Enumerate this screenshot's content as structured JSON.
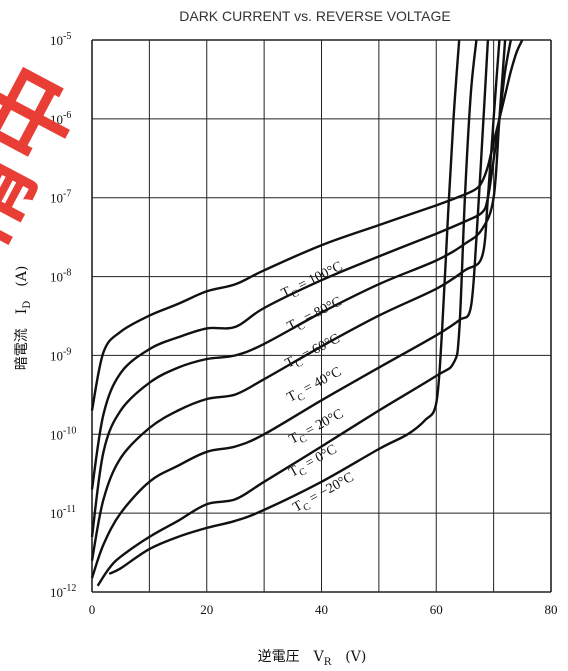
{
  "chart_data": {
    "type": "line",
    "title": "DARK CURRENT vs. REVERSE VOLTAGE",
    "xlabel": "逆電圧　V_R　(V)",
    "ylabel": "暗電流　I_D　(A)",
    "xlim": [
      0,
      80
    ],
    "ylim": [
      1e-12,
      1e-05
    ],
    "yscale": "log",
    "grid": true,
    "x_ticks": [
      "0",
      "20",
      "40",
      "60",
      "80"
    ],
    "y_ticks": [
      "10^-12",
      "10^-11",
      "10^-10",
      "10^-9",
      "10^-8",
      "10^-7",
      "10^-6",
      "10^-5"
    ],
    "series": [
      {
        "name": "T_C = 100°C",
        "x": [
          0,
          2,
          5,
          10,
          15,
          20,
          25,
          30,
          40,
          50,
          60,
          65,
          67,
          68,
          69,
          70,
          71,
          72,
          73,
          74,
          75
        ],
        "y": [
          2e-10,
          1.1e-09,
          2e-09,
          3.2e-09,
          4.5e-09,
          6.5e-09,
          8e-09,
          1.2e-08,
          2.5e-08,
          4.5e-08,
          8e-08,
          1.1e-07,
          1.3e-07,
          1.6e-07,
          2.5e-07,
          5e-07,
          1e-06,
          2e-06,
          4e-06,
          7e-06,
          1e-05
        ]
      },
      {
        "name": "T_C = 80°C",
        "x": [
          0,
          2,
          5,
          10,
          15,
          20,
          25,
          30,
          40,
          50,
          60,
          65,
          68,
          69,
          70,
          71,
          72,
          73
        ],
        "y": [
          2e-11,
          1.8e-10,
          6e-10,
          1.2e-09,
          1.7e-09,
          2.2e-09,
          2.3e-09,
          4e-09,
          9e-09,
          1.8e-08,
          3.5e-08,
          5e-08,
          6.5e-08,
          1e-07,
          3e-07,
          1e-06,
          4e-06,
          1e-05
        ]
      },
      {
        "name": "T_C = 60°C",
        "x": [
          0,
          2,
          5,
          10,
          15,
          20,
          25,
          30,
          40,
          50,
          60,
          65,
          68,
          70,
          71,
          72
        ],
        "y": [
          5e-12,
          6e-11,
          2e-10,
          4.5e-10,
          7e-10,
          9e-10,
          1e-09,
          1.4e-09,
          3.5e-09,
          8e-09,
          1.6e-08,
          2.6e-08,
          4e-08,
          1e-07,
          1e-06,
          1e-05
        ]
      },
      {
        "name": "T_C = 40°C",
        "x": [
          0,
          2,
          5,
          10,
          15,
          20,
          25,
          30,
          40,
          50,
          60,
          65,
          68,
          69,
          70,
          71
        ],
        "y": [
          2.5e-12,
          1.5e-11,
          5e-11,
          1.2e-10,
          2e-10,
          2.8e-10,
          3.2e-10,
          5e-10,
          1.3e-09,
          3.2e-09,
          7e-09,
          1.2e-08,
          1.8e-08,
          1e-07,
          1e-06,
          1e-05
        ]
      },
      {
        "name": "T_C = 20°C",
        "x": [
          0,
          2,
          5,
          10,
          15,
          20,
          25,
          30,
          40,
          50,
          60,
          64,
          66,
          67,
          68,
          69
        ],
        "y": [
          1.5e-12,
          4e-12,
          1e-11,
          2.5e-11,
          4e-11,
          6e-11,
          7e-11,
          1e-10,
          2.7e-10,
          7e-10,
          1.8e-09,
          2.8e-09,
          4e-09,
          3e-08,
          5e-07,
          1e-05
        ]
      },
      {
        "name": "T_C = 0°C",
        "x": [
          1,
          3,
          5,
          10,
          15,
          20,
          25,
          30,
          40,
          50,
          60,
          63,
          64,
          65,
          66,
          67
        ],
        "y": [
          1.2e-12,
          2e-12,
          2.8e-12,
          5e-12,
          8e-12,
          1.3e-11,
          1.5e-11,
          2.5e-11,
          7e-11,
          2e-10,
          5.5e-10,
          8e-10,
          2e-09,
          1e-07,
          2e-06,
          1e-05
        ]
      },
      {
        "name": "T_C = −20°C",
        "x": [
          3,
          5,
          10,
          15,
          20,
          25,
          30,
          40,
          50,
          55,
          58,
          60,
          61,
          62,
          63,
          64
        ],
        "y": [
          1.7e-12,
          2e-12,
          3.5e-12,
          5e-12,
          6.5e-12,
          8e-12,
          1.1e-11,
          2.5e-11,
          6.5e-11,
          1e-10,
          1.5e-10,
          2.5e-10,
          2e-09,
          5e-08,
          1e-06,
          1e-05
        ]
      }
    ]
  }
}
